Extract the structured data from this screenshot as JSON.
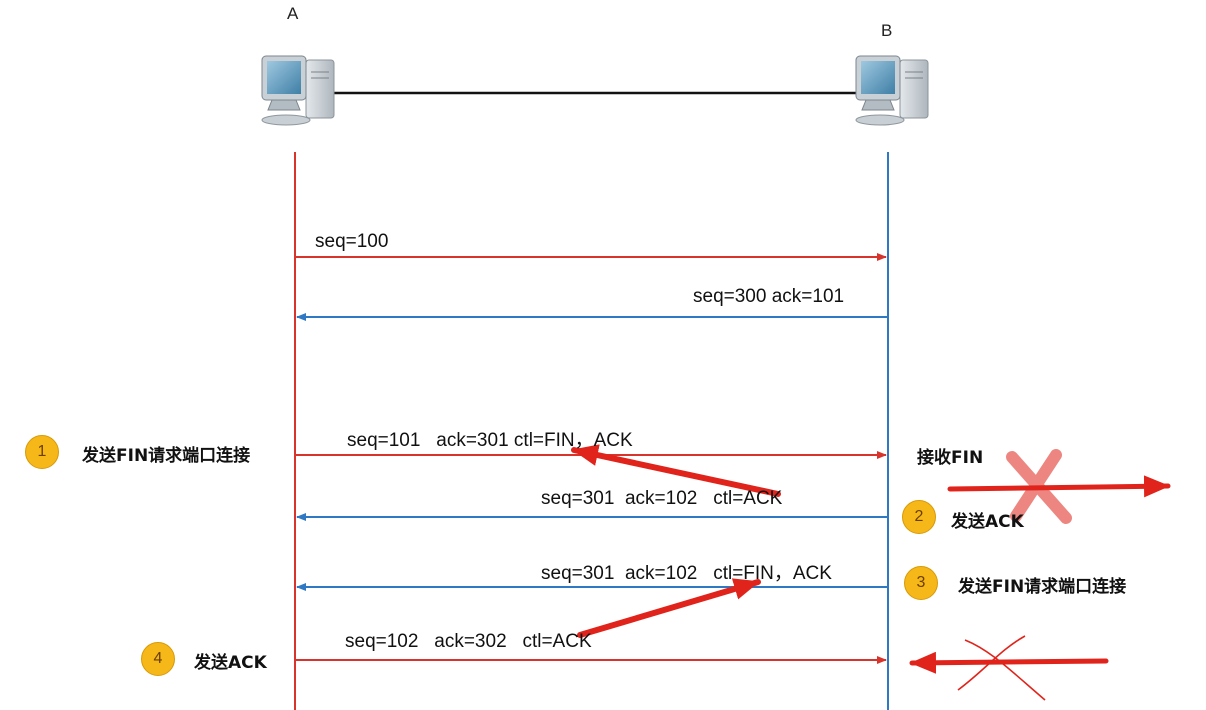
{
  "hosts": {
    "a_label": "A",
    "b_label": "B"
  },
  "messages": {
    "m1": "seq=100",
    "m2": "seq=300 ack=101",
    "m3": "seq=101   ack=301 ctl=FIN，ACK",
    "m4": "seq=301  ack=102   ctl=ACK",
    "m5": "seq=301  ack=102   ctl=FIN，ACK",
    "m6": "seq=102   ack=302   ctl=ACK"
  },
  "steps": {
    "s1_num": "1",
    "s1_text": "发送FIN请求端口连接",
    "recv_fin": "接收FIN",
    "s2_num": "2",
    "s2_text": "发送ACK",
    "s3_num": "3",
    "s3_text": "发送FIN请求端口连接",
    "s4_num": "4",
    "s4_text": "发送ACK"
  },
  "colors": {
    "host_a_line": "#d9342b",
    "host_b_line": "#2f78c4",
    "annotation_red": "#e0241b",
    "badge": "#f6b718"
  },
  "icons": {
    "computer": "computer-icon"
  }
}
